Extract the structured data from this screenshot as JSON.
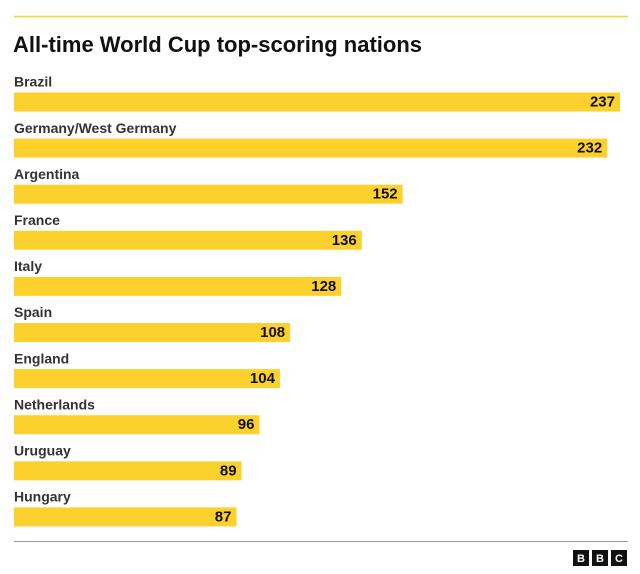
{
  "chart_data": {
    "type": "bar",
    "orientation": "horizontal",
    "title": "All-time World Cup top-scoring nations",
    "categories": [
      "Brazil",
      "Germany/West Germany",
      "Argentina",
      "France",
      "Italy",
      "Spain",
      "England",
      "Netherlands",
      "Uruguay",
      "Hungary"
    ],
    "values": [
      237,
      232,
      152,
      136,
      128,
      108,
      104,
      96,
      89,
      87
    ],
    "color": "#fdd12d"
  },
  "logo": [
    "B",
    "B",
    "C"
  ]
}
